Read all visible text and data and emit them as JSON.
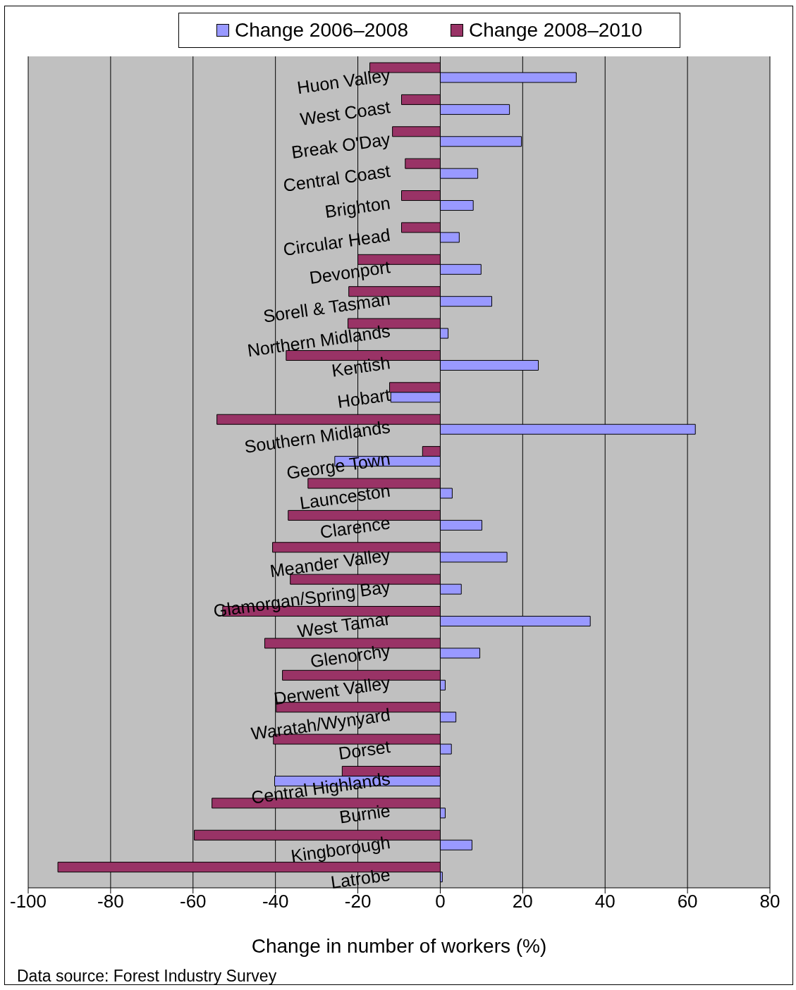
{
  "chart_data": {
    "type": "bar",
    "orientation": "horizontal",
    "xlabel": "Change in number of workers (%)",
    "categories": [
      "Huon Valley",
      "West Coast",
      "Break O'Day",
      "Central Coast",
      "Brighton",
      "Circular Head",
      "Devonport",
      "Sorell & Tasman",
      "Northern Midlands",
      "Kentish",
      "Hobart",
      "Southern Midlands",
      "George Town",
      "Launceston",
      "Clarence",
      "Meander Valley",
      "Glamorgan/Spring Bay",
      "West Tamar",
      "Glenorchy",
      "Derwent Valley",
      "Waratah/Wynyard",
      "Dorset",
      "Central Highlands",
      "Burnie",
      "Kingborough",
      "Latrobe"
    ],
    "series": [
      {
        "name": "Change 2006–2008",
        "color": "#9999ff",
        "values": [
          33.0,
          16.8,
          19.7,
          9.1,
          8.0,
          4.6,
          9.9,
          12.5,
          1.9,
          23.8,
          -12.0,
          61.9,
          -25.6,
          2.9,
          10.1,
          16.2,
          5.1,
          36.4,
          9.6,
          1.2,
          3.8,
          2.7,
          -40.2,
          1.2,
          7.7,
          0.5
        ]
      },
      {
        "name": "Change 2008–2010",
        "color": "#993366",
        "values": [
          -17.1,
          -9.4,
          -11.6,
          -8.5,
          -9.4,
          -9.4,
          -20.0,
          -22.2,
          -22.4,
          -37.4,
          -12.3,
          -54.2,
          -4.3,
          -32.1,
          -36.9,
          -40.7,
          -36.4,
          -52.8,
          -42.6,
          -38.3,
          -39.8,
          -40.5,
          -23.8,
          -55.4,
          -59.7,
          -92.8
        ]
      }
    ],
    "xlim": [
      -100,
      80
    ],
    "xticks": [
      -100,
      -80,
      -60,
      -40,
      -20,
      0,
      20,
      40,
      60,
      80
    ],
    "grid": "x",
    "legend": "top",
    "annotations": [
      "Data source: Forest Industry Survey"
    ]
  }
}
